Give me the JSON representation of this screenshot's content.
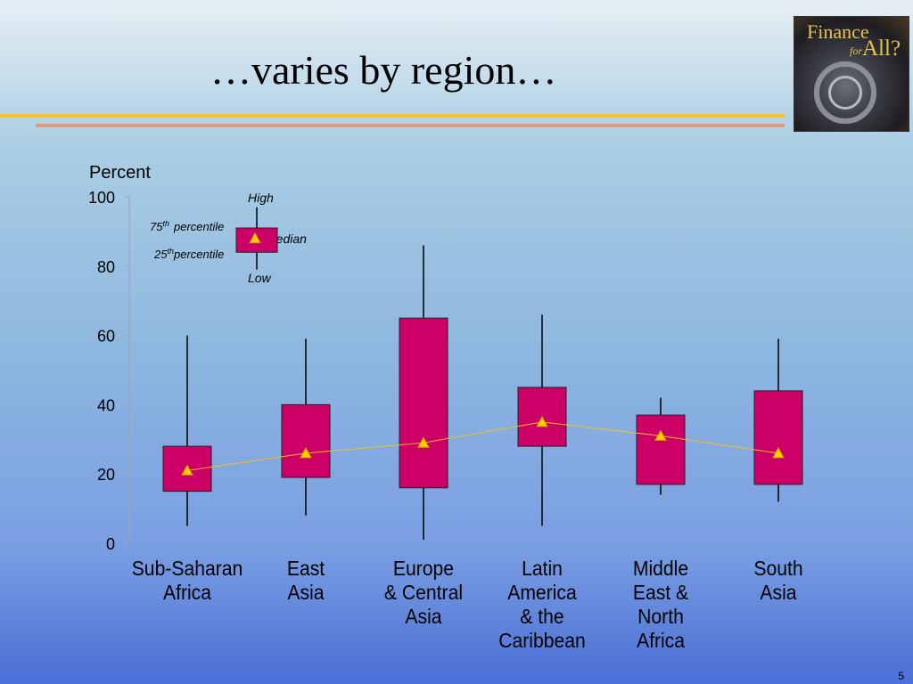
{
  "slide": {
    "title": "…varies by region…",
    "page_number": "5"
  },
  "logo": {
    "line1": "Finance",
    "line2": "for",
    "line3": "All?"
  },
  "legend": {
    "high": "High",
    "p75": "75",
    "p75_sup": "th",
    "p75_word": "percentile",
    "median": "Median",
    "p25": "25",
    "p25_sup": "th",
    "p25_word": "percentile",
    "low": "Low"
  },
  "colors": {
    "box": "#cc0066",
    "median_marker": "#ffcc00",
    "median_line": "#f0c020"
  },
  "chart_data": {
    "type": "box",
    "ylabel": "Percent",
    "ylim": [
      0,
      100
    ],
    "yticks": [
      0,
      20,
      40,
      60,
      80,
      100
    ],
    "categories": [
      [
        "Sub-Saharan",
        "Africa"
      ],
      [
        "East",
        "Asia"
      ],
      [
        "Europe",
        "& Central",
        "Asia"
      ],
      [
        "Latin",
        "America",
        "& the",
        "Caribbean"
      ],
      [
        "Middle",
        "East &",
        "North",
        "Africa"
      ],
      [
        "South",
        "Asia"
      ]
    ],
    "boxes": [
      {
        "low": 5,
        "q1": 15,
        "median": 21,
        "q3": 28,
        "high": 60
      },
      {
        "low": 8,
        "q1": 19,
        "median": 26,
        "q3": 40,
        "high": 59
      },
      {
        "low": 1,
        "q1": 16,
        "median": 29,
        "q3": 65,
        "high": 86
      },
      {
        "low": 5,
        "q1": 28,
        "median": 35,
        "q3": 45,
        "high": 66
      },
      {
        "low": 14,
        "q1": 17,
        "median": 31,
        "q3": 37,
        "high": 42
      },
      {
        "low": 12,
        "q1": 17,
        "median": 26,
        "q3": 44,
        "high": 59
      }
    ],
    "legend_example": {
      "low": 79,
      "q1": 84,
      "median": 88,
      "q3": 91,
      "high": 97
    }
  }
}
